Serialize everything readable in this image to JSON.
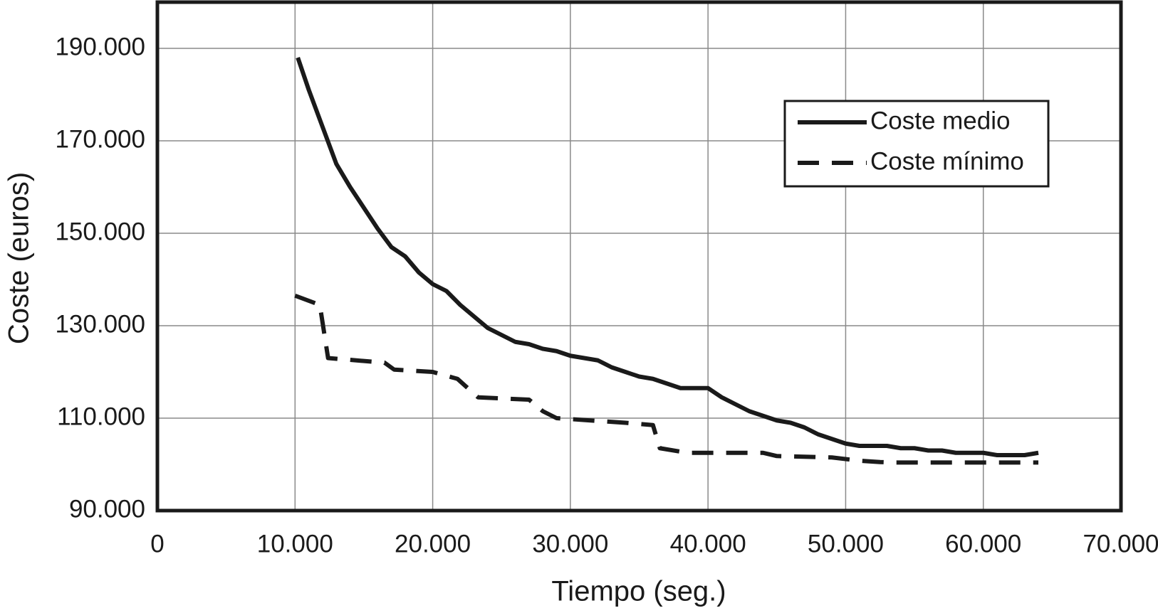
{
  "chart_data": {
    "type": "line",
    "x_label": "Tiempo (seg.)",
    "y_label": "Coste (euros)",
    "xlim": [
      0,
      70000
    ],
    "ylim": [
      90000,
      200000
    ],
    "xticks": [
      0,
      {
        "value": 10000,
        "label": "10.000"
      },
      {
        "value": 20000,
        "label": "20.000"
      },
      {
        "value": 30000,
        "label": "30.000"
      },
      {
        "value": 40000,
        "label": "40.000"
      },
      {
        "value": 50000,
        "label": "50.000"
      },
      {
        "value": 60000,
        "label": "60.000"
      },
      {
        "value": 70000,
        "label": "70.000"
      }
    ],
    "yticks": [
      {
        "value": 90000,
        "label": "90.000"
      },
      {
        "value": 110000,
        "label": "110.000"
      },
      {
        "value": 130000,
        "label": "130.000"
      },
      {
        "value": 150000,
        "label": "150.000"
      },
      {
        "value": 170000,
        "label": "170.000"
      },
      {
        "value": 190000,
        "label": "190.000"
      }
    ],
    "grid": true,
    "legend": "upper right",
    "series": [
      {
        "name": "Coste medio",
        "color": "#1a1a1a",
        "line_style": "solid",
        "x": [
          10200,
          11000,
          12000,
          13000,
          14000,
          15000,
          16000,
          17000,
          18000,
          19000,
          20000,
          21000,
          22000,
          23000,
          24000,
          25000,
          26000,
          27000,
          28000,
          29000,
          30000,
          31000,
          32000,
          33000,
          34000,
          35000,
          36000,
          37000,
          38000,
          39000,
          40000,
          41000,
          42000,
          43000,
          44000,
          45000,
          46000,
          47000,
          48000,
          49000,
          50000,
          51000,
          52000,
          53000,
          54000,
          55000,
          56000,
          57000,
          58000,
          59000,
          60000,
          61000,
          62000,
          63000,
          64000
        ],
        "values": [
          188000,
          181000,
          173000,
          165000,
          160000,
          155500,
          151000,
          147000,
          145000,
          141500,
          139000,
          137500,
          134500,
          132000,
          129500,
          128000,
          126500,
          126000,
          125000,
          124500,
          123500,
          123000,
          122500,
          121000,
          120000,
          119000,
          118500,
          117500,
          116500,
          116500,
          116500,
          114500,
          113000,
          111500,
          110500,
          109500,
          109000,
          108000,
          106500,
          105500,
          104500,
          104000,
          104000,
          104000,
          103500,
          103500,
          103000,
          103000,
          102500,
          102500,
          102500,
          102000,
          102000,
          102000,
          102500
        ]
      },
      {
        "name": "Coste mínimo",
        "color": "#1a1a1a",
        "line_style": "dashed",
        "x": [
          10000,
          11800,
          12400,
          16500,
          17200,
          20000,
          21800,
          23300,
          27000,
          28000,
          29000,
          34000,
          36000,
          36500,
          38500,
          44000,
          45000,
          49000,
          51000,
          52500,
          53500,
          64000
        ],
        "values": [
          136500,
          134500,
          123000,
          122000,
          120500,
          120000,
          118500,
          114500,
          114000,
          111500,
          110000,
          109000,
          108500,
          103500,
          102500,
          102500,
          101800,
          101500,
          100800,
          100500,
          100400,
          100400
        ]
      }
    ]
  }
}
